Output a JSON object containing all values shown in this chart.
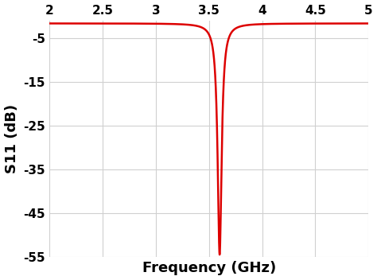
{
  "xlabel": "Frequency (GHz)",
  "ylabel": "S11 (dB)",
  "xlabel_fontsize": 13,
  "ylabel_fontsize": 13,
  "xlabel_fontweight": "bold",
  "ylabel_fontweight": "bold",
  "line_color": "#dd0000",
  "line_width": 1.8,
  "xlim": [
    2,
    5
  ],
  "ylim": [
    -55,
    -1
  ],
  "xticks": [
    2,
    2.5,
    3,
    3.5,
    4,
    4.5,
    5
  ],
  "xtick_labels": [
    "2",
    "2.5",
    "3",
    "3.5",
    "4",
    "4.5",
    "5"
  ],
  "yticks": [
    -55,
    -45,
    -35,
    -25,
    -15,
    -5
  ],
  "ytick_labels": [
    "-55",
    "-45",
    "-35",
    "-25",
    "-15",
    "-5"
  ],
  "resonance_freq": 3.6,
  "resonance_depth": -54.5,
  "baseline": -1.6,
  "q_factor": 80,
  "tick_fontsize": 11,
  "tick_fontweight": "bold",
  "grid_color": "#d0d0d0",
  "grid_linewidth": 0.8,
  "background_color": "#ffffff"
}
